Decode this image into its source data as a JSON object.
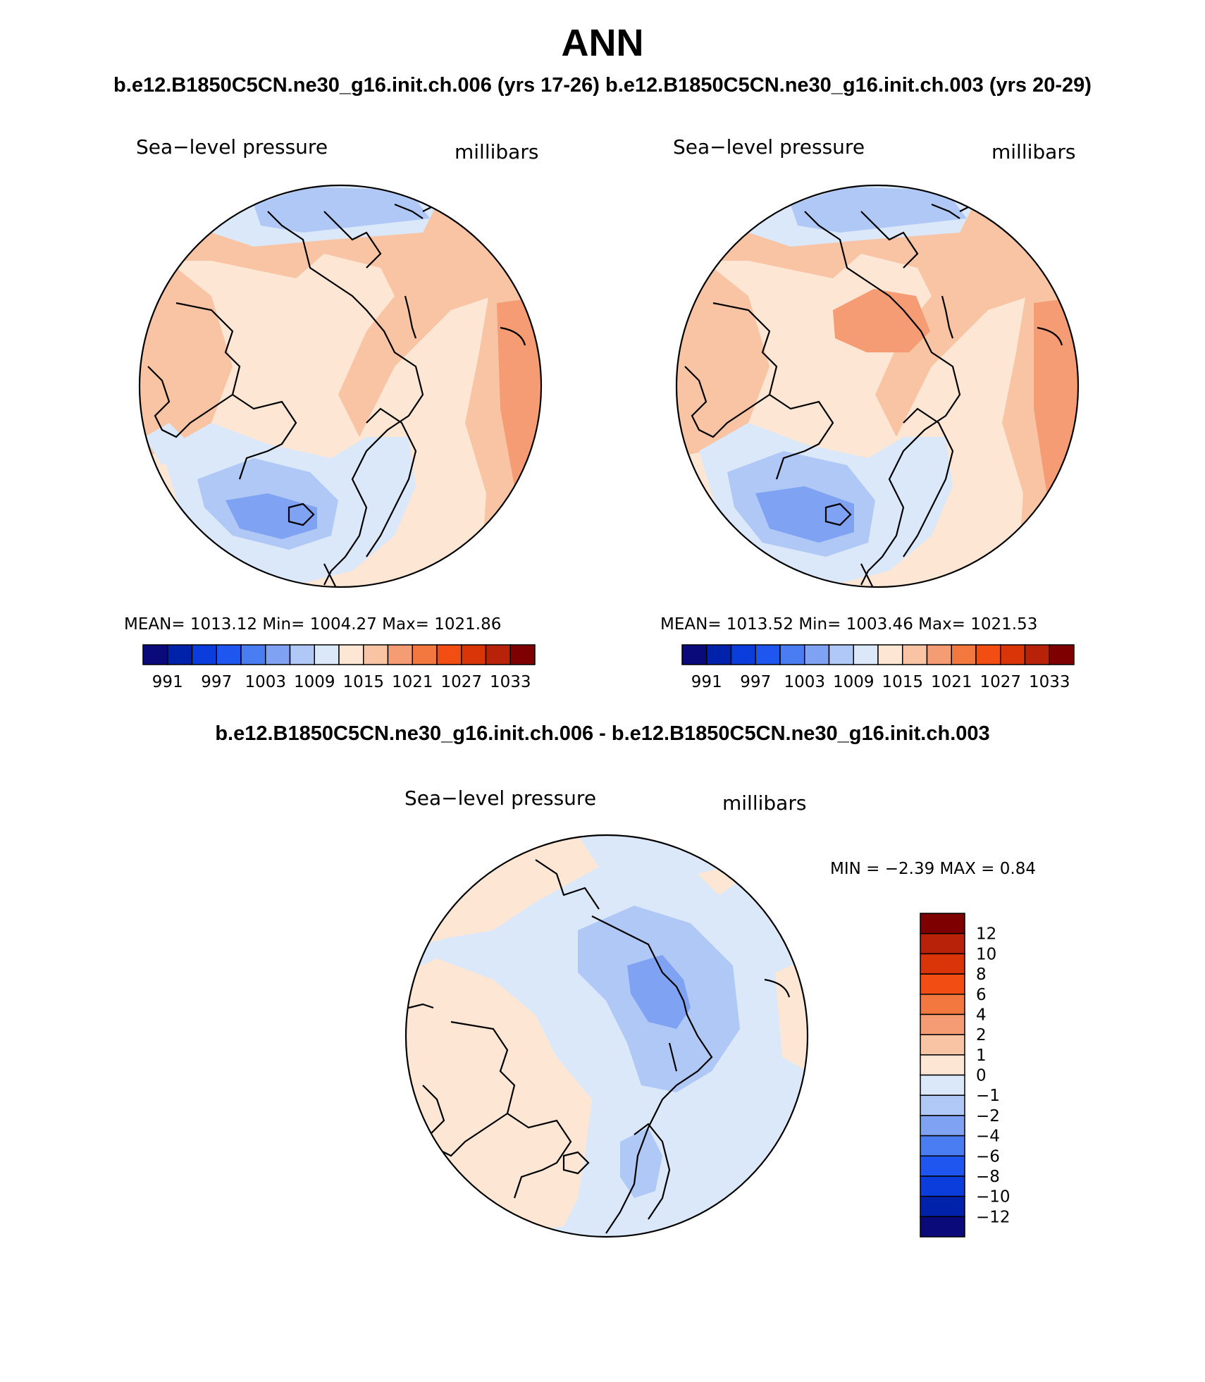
{
  "figure": {
    "title": "ANN",
    "case_titles": "b.e12.B1850C5CN.ne30_g16.init.ch.006 (yrs 17-26) b.e12.B1850C5CN.ne30_g16.init.ch.003 (yrs 20-29)",
    "diff_title": "b.e12.B1850C5CN.ne30_g16.init.ch.006 - b.e12.B1850C5CN.ne30_g16.init.ch.003"
  },
  "panels": [
    {
      "variable": "Sea−level pressure",
      "units": "millibars",
      "stats": "MEAN=  1013.12   Min=  1004.27   Max=  1021.86",
      "stats_values": {
        "mean": 1013.12,
        "min": 1004.27,
        "max": 1021.86
      }
    },
    {
      "variable": "Sea−level pressure",
      "units": "millibars",
      "stats": "MEAN=  1013.52   Min=  1003.46   Max=  1021.53",
      "stats_values": {
        "mean": 1013.52,
        "min": 1003.46,
        "max": 1021.53
      }
    }
  ],
  "diff_panel": {
    "variable": "Sea−level pressure",
    "units": "millibars",
    "stats": "MIN =   −2.39  MAX =     0.84",
    "stats_values": {
      "min": -2.39,
      "max": 0.84
    }
  },
  "colorbar_main": {
    "tick_labels": [
      "991",
      "997",
      "1003",
      "1009",
      "1015",
      "1021",
      "1027",
      "1033"
    ],
    "colors": [
      "#0a0a7a",
      "#0022aa",
      "#0a3ddb",
      "#1f56f0",
      "#4a7cf2",
      "#7fa3f2",
      "#b0c8f5",
      "#dbe8f9",
      "#fde6d4",
      "#f8c4a4",
      "#f59c74",
      "#f27840",
      "#f24d12",
      "#d93508",
      "#b82208",
      "#7f0000"
    ]
  },
  "colorbar_diff": {
    "tick_labels": [
      "12",
      "10",
      "8",
      "6",
      "4",
      "2",
      "1",
      "0",
      "−1",
      "−2",
      "−4",
      "−6",
      "−8",
      "−10",
      "−12"
    ],
    "colors_top_to_bottom": [
      "#7f0000",
      "#b82208",
      "#d93508",
      "#f24d12",
      "#f27840",
      "#f59c74",
      "#f8c4a4",
      "#fde6d4",
      "#dbe8f9",
      "#b0c8f5",
      "#7fa3f2",
      "#4a7cf2",
      "#1f56f0",
      "#0a3ddb",
      "#0022aa",
      "#0a0a7a"
    ]
  }
}
